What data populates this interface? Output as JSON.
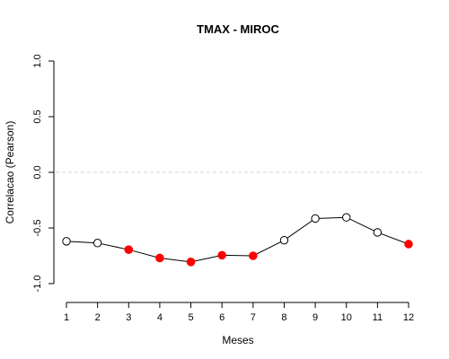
{
  "chart_data": {
    "type": "line",
    "title": "TMAX - MIROC",
    "xlabel": "Meses",
    "ylabel": "Correlacao (Pearson)",
    "x": [
      1,
      2,
      3,
      4,
      5,
      6,
      7,
      8,
      9,
      10,
      11,
      12
    ],
    "values": [
      -0.62,
      -0.635,
      -0.695,
      -0.77,
      -0.805,
      -0.745,
      -0.75,
      -0.61,
      -0.415,
      -0.405,
      -0.54,
      -0.645
    ],
    "highlighted": [
      false,
      false,
      true,
      true,
      true,
      true,
      true,
      false,
      false,
      false,
      false,
      true
    ],
    "xlim": [
      1,
      12
    ],
    "ylim": [
      -1.0,
      1.0
    ],
    "yticks": [
      -1.0,
      -0.5,
      0.0,
      0.5,
      1.0
    ],
    "ytick_labels": [
      "-1.0",
      "-0.5",
      "0.0",
      "0.5",
      "1.0"
    ],
    "xticks": [
      1,
      2,
      3,
      4,
      5,
      6,
      7,
      8,
      9,
      10,
      11,
      12
    ],
    "xtick_labels": [
      "1",
      "2",
      "3",
      "4",
      "5",
      "6",
      "7",
      "8",
      "9",
      "10",
      "11",
      "12"
    ],
    "reference_line": 0.0,
    "grid": false,
    "colors": {
      "line": "#000000",
      "marker_normal_stroke": "#000000",
      "marker_normal_fill": "#ffffff",
      "marker_highlight": "#ff0000",
      "reference_line": "#d3d3d3"
    }
  }
}
